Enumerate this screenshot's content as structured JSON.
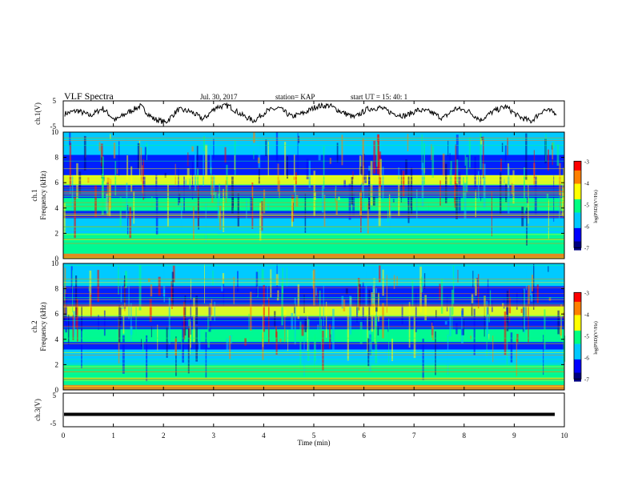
{
  "header": {
    "title": "VLF Spectra",
    "date": "Jul. 30, 2017",
    "station": "station= KAP",
    "start": "start UT =  15: 40: 1"
  },
  "chart_data": [
    {
      "type": "line",
      "ylabel": "ch.1(V)",
      "ylim": [
        -5,
        5
      ],
      "yticks": [
        "5",
        "-5"
      ],
      "series": [
        {
          "values": [
            0,
            1.2,
            -0.8,
            2.1,
            -2.6,
            0.5,
            3.0,
            -1.9,
            -3.4,
            1.6,
            0.8,
            -2.2,
            2.6,
            3.1,
            -0.4,
            -2.8,
            1.0,
            2.2,
            -1.2,
            0.3,
            2.9,
            3.2,
            0.6,
            -1.5,
            1.8,
            2.4,
            0.2,
            -0.9,
            1.4,
            0.7,
            -1.8,
            2.0,
            1.1,
            -2.5,
            0.9,
            2.8,
            -1.1,
            -3.0,
            1.5,
            0.4
          ]
        }
      ]
    },
    {
      "type": "heatmap",
      "ylabel": "ch.1\nFrequency (kHz)",
      "ylim": [
        0,
        10
      ],
      "yticks": [
        "0",
        "2",
        "4",
        "6",
        "8",
        "10"
      ],
      "colorbar": {
        "label": "log(PSD)(V²/Hz)",
        "range": [
          -7,
          -3
        ],
        "ticks": [
          "-3",
          "-4",
          "-5",
          "-6",
          "-7"
        ]
      }
    },
    {
      "type": "heatmap",
      "ylabel": "ch.2\nFrequency (kHz)",
      "ylim": [
        0,
        10
      ],
      "yticks": [
        "0",
        "2",
        "4",
        "6",
        "8",
        "10"
      ],
      "colorbar": {
        "label": "log(PSD)(V²/Hz)",
        "range": [
          -7,
          -3
        ],
        "ticks": [
          "-3",
          "-4",
          "-5",
          "-6",
          "-7"
        ]
      }
    },
    {
      "type": "line",
      "ylabel": "ch.3(V)",
      "ylim": [
        -5,
        5
      ],
      "yticks": [
        "5",
        "-5"
      ],
      "series": [
        {
          "values": [
            -1.3,
            -1.3
          ]
        }
      ]
    }
  ],
  "x_axis": {
    "xlabel": "Time (min)",
    "xlim": [
      0,
      10
    ],
    "ticks": [
      "0",
      "1",
      "2",
      "3",
      "4",
      "5",
      "6",
      "7",
      "8",
      "9",
      "10"
    ]
  },
  "colors": {
    "colormap": [
      "#00007f",
      "#0000ff",
      "#00c8ff",
      "#00ff80",
      "#ffff00",
      "#ff8000",
      "#ff0000"
    ]
  }
}
